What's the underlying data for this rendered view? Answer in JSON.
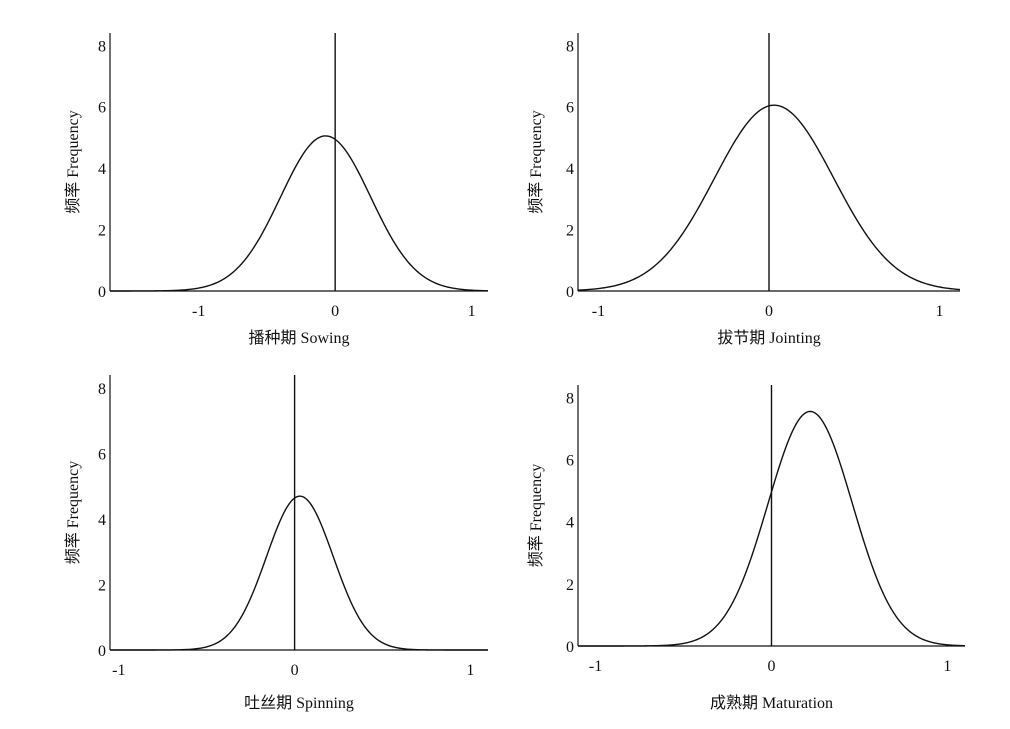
{
  "chart_data": [
    {
      "type": "line",
      "xlabel": "播种期 Sowing",
      "ylabel": "频率 Frequency",
      "xticks": [
        -1,
        0,
        1
      ],
      "yticks": [
        0,
        2,
        4,
        6,
        8
      ],
      "xlim": [
        -1.65,
        1.12
      ],
      "ylim": [
        0,
        8.4
      ],
      "curve": {
        "mean": -0.07,
        "sd": 0.33,
        "peak": 5.05
      },
      "reference_line_x": 0
    },
    {
      "type": "line",
      "xlabel": "拔节期 Jointing",
      "ylabel": "频率 Frequency",
      "xticks": [
        -1,
        0,
        1
      ],
      "yticks": [
        0,
        2,
        4,
        6,
        8
      ],
      "xlim": [
        -1.12,
        1.12
      ],
      "ylim": [
        0,
        8.4
      ],
      "curve": {
        "mean": 0.03,
        "sd": 0.35,
        "peak": 6.05
      },
      "reference_line_x": 0
    },
    {
      "type": "line",
      "xlabel": "吐丝期 Spinning",
      "ylabel": "频率 Frequency",
      "xticks": [
        -1,
        0,
        1
      ],
      "yticks": [
        0,
        2,
        4,
        6,
        8
      ],
      "xlim": [
        -1.05,
        1.1
      ],
      "ylim": [
        0,
        8.4
      ],
      "curve": {
        "mean": 0.03,
        "sd": 0.19,
        "peak": 4.7
      },
      "reference_line_x": 0
    },
    {
      "type": "line",
      "xlabel": "成熟期 Maturation",
      "ylabel": "频率 Frequency",
      "xticks": [
        -1,
        0,
        1
      ],
      "yticks": [
        0,
        2,
        4,
        6,
        8
      ],
      "xlim": [
        -1.1,
        1.1
      ],
      "ylim": [
        0,
        8.4
      ],
      "curve": {
        "mean": 0.22,
        "sd": 0.24,
        "peak": 7.55
      },
      "reference_line_x": 0
    }
  ]
}
